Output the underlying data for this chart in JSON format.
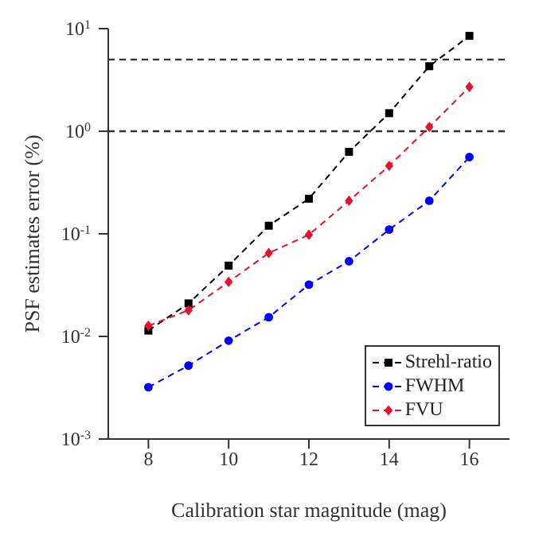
{
  "chart_data": {
    "type": "line",
    "xlabel": "Calibration star magnitude (mag)",
    "ylabel": "PSF estimates error (%)",
    "x": [
      8,
      9,
      10,
      11,
      12,
      13,
      14,
      15,
      16
    ],
    "series": [
      {
        "name": "Strehl-ratio",
        "color": "#000000",
        "marker": "square",
        "values": [
          0.0114,
          0.021,
          0.049,
          0.12,
          0.22,
          0.63,
          1.5,
          4.3,
          8.5
        ]
      },
      {
        "name": "FWHM",
        "color": "#0000ff",
        "marker": "circle",
        "values": [
          0.0032,
          0.0052,
          0.0091,
          0.0154,
          0.032,
          0.054,
          0.11,
          0.21,
          0.56
        ]
      },
      {
        "name": "FVU",
        "color": "#e8112d",
        "marker": "diamond",
        "values": [
          0.0127,
          0.018,
          0.034,
          0.065,
          0.098,
          0.21,
          0.46,
          1.1,
          2.7
        ]
      }
    ],
    "line_style": "dashed",
    "log": "y",
    "grid": false,
    "legend": "bottom right",
    "xlim": [
      7,
      17
    ],
    "xticks": [
      8,
      10,
      12,
      14,
      16
    ],
    "ylim": [
      0.001,
      10
    ],
    "yticks": [
      {
        "value": 0.001,
        "label": "10$^{-3}$"
      },
      {
        "value": 0.01,
        "label": "10$^{-2}$"
      },
      {
        "value": 0.1,
        "label": "10$^{-1}$"
      },
      {
        "value": 1,
        "label": "10$^{0}$"
      },
      {
        "value": 10,
        "label": "10$^{1}$"
      }
    ],
    "ref_lines": [
      {
        "axis": "y",
        "value": 5,
        "label": null,
        "color": "#333333",
        "line_style": "dashed"
      },
      {
        "axis": "y",
        "value": 1,
        "label": null,
        "color": "#333333",
        "line_style": "dashed"
      }
    ]
  }
}
